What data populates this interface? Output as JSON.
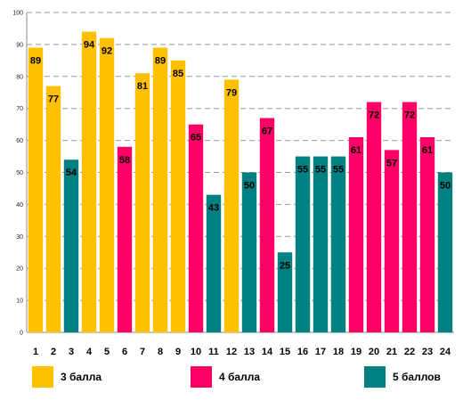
{
  "chart_data": {
    "type": "bar",
    "title": "",
    "xlabel": "",
    "ylabel": "",
    "ylim": [
      0,
      100
    ],
    "yticks": [
      0,
      10,
      20,
      30,
      40,
      50,
      60,
      70,
      80,
      90,
      100
    ],
    "grid": true,
    "legend_position": "bottom",
    "categories": [
      "1",
      "2",
      "3",
      "4",
      "5",
      "6",
      "7",
      "8",
      "9",
      "10",
      "11",
      "12",
      "13",
      "14",
      "15",
      "16",
      "17",
      "18",
      "19",
      "20",
      "21",
      "22",
      "23",
      "24"
    ],
    "values": [
      89,
      77,
      54,
      94,
      92,
      58,
      81,
      89,
      85,
      65,
      43,
      79,
      50,
      67,
      25,
      55,
      55,
      55,
      61,
      72,
      57,
      72,
      61,
      50
    ],
    "groups": [
      "3 балла",
      "3 балла",
      "5 баллов",
      "3 балла",
      "3 балла",
      "4 балла",
      "3 балла",
      "3 балла",
      "3 балла",
      "4 балла",
      "5 баллов",
      "3 балла",
      "5 баллов",
      "4 балла",
      "5 баллов",
      "5 баллов",
      "5 баллов",
      "5 баллов",
      "4 балла",
      "4 балла",
      "4 балла",
      "4 балла",
      "4 балла",
      "5 баллов"
    ],
    "legend": [
      {
        "name": "3 балла",
        "color": "#FFC000"
      },
      {
        "name": "4 балла",
        "color": "#FF0066"
      },
      {
        "name": "5 баллов",
        "color": "#008080"
      }
    ]
  }
}
